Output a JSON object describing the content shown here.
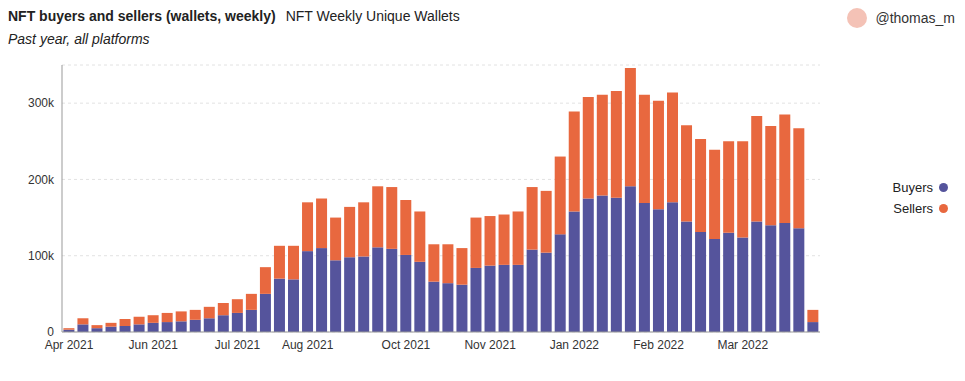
{
  "chart_data": {
    "type": "bar",
    "title": "NFT buyers and sellers (wallets, weekly)",
    "subtitle": "Past year, all platforms",
    "annotations": [
      "NFT Weekly Unique Wallets",
      "@thomas_m"
    ],
    "stacked": true,
    "grid": true,
    "legend": "right",
    "categories": [
      "Apr 2021",
      null,
      null,
      null,
      null,
      null,
      "Jun 2021",
      null,
      null,
      null,
      null,
      null,
      "Jul 2021",
      null,
      null,
      null,
      null,
      "Aug 2021",
      null,
      null,
      null,
      null,
      null,
      null,
      "Oct 2021",
      null,
      null,
      null,
      null,
      null,
      "Nov 2021",
      null,
      null,
      null,
      null,
      null,
      "Jan 2022",
      null,
      null,
      null,
      null,
      null,
      "Feb 2022",
      null,
      null,
      null,
      null,
      null,
      "Mar 2022",
      null,
      null,
      null,
      null,
      null
    ],
    "series": [
      {
        "name": "Buyers",
        "color": "#55549c",
        "values": [
          3000,
          10000,
          5000,
          7000,
          8000,
          10000,
          12000,
          13000,
          14000,
          16000,
          18000,
          22000,
          25000,
          29000,
          50000,
          70000,
          69000,
          106000,
          110000,
          94000,
          98000,
          99000,
          111000,
          109000,
          101000,
          92000,
          66000,
          64000,
          62000,
          84000,
          87000,
          88000,
          88000,
          108000,
          104000,
          128000,
          158000,
          175000,
          179000,
          176000,
          191000,
          169000,
          161000,
          170000,
          145000,
          131000,
          122000,
          130000,
          124000,
          145000,
          140000,
          143000,
          136000,
          13000
        ]
      },
      {
        "name": "Sellers",
        "color": "#e8683f",
        "values": [
          2000,
          8000,
          4000,
          5000,
          9000,
          10000,
          10000,
          12000,
          13000,
          13000,
          15000,
          16000,
          18000,
          21000,
          35000,
          43000,
          44000,
          64000,
          65000,
          56000,
          66000,
          71000,
          80000,
          81000,
          72000,
          66000,
          49000,
          51000,
          48000,
          66000,
          65000,
          66000,
          70000,
          82000,
          81000,
          102000,
          131000,
          133000,
          132000,
          140000,
          155000,
          142000,
          142000,
          144000,
          126000,
          122000,
          117000,
          120000,
          126000,
          138000,
          130000,
          142000,
          131000,
          16000
        ]
      }
    ],
    "ylim": [
      0,
      350000
    ],
    "yticks": [
      0,
      {
        "value": 100000,
        "label": "100k"
      },
      {
        "value": 200000,
        "label": "200k"
      },
      {
        "value": 300000,
        "label": "300k"
      }
    ]
  }
}
